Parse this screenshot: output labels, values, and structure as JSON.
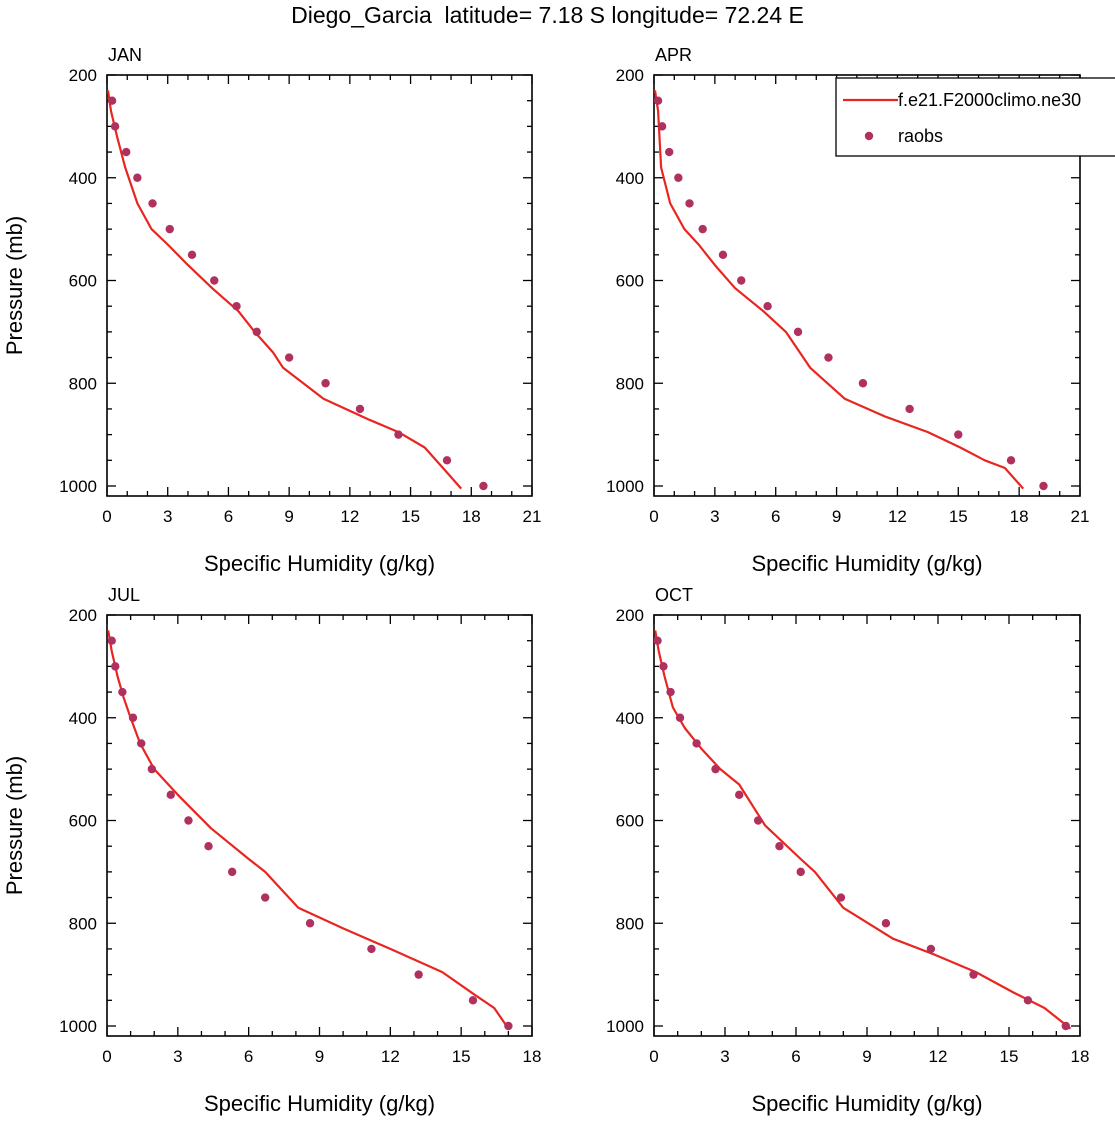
{
  "figure": {
    "title": "Diego_Garcia  latitude= 7.18 S longitude= 72.24 E"
  },
  "legend": {
    "model_label": "f.e21.F2000climo.ne30",
    "obs_label": "raobs",
    "model_color": "#e8261f",
    "obs_color": "#b03060"
  },
  "chart_data": [
    {
      "type": "line",
      "title": "JAN",
      "xlabel": "Specific Humidity (g/kg)",
      "ylabel": "Pressure (mb)",
      "xlim": [
        0,
        21
      ],
      "ylim": [
        200,
        1000
      ],
      "y_inverted": true,
      "x_ticks": [
        0,
        3,
        6,
        9,
        12,
        15,
        18,
        21
      ],
      "y_ticks": [
        200,
        400,
        600,
        800,
        1000
      ],
      "series": [
        {
          "name": "f.e21.F2000climo.ne30",
          "kind": "line",
          "x": [
            0.05,
            0.2,
            0.5,
            0.9,
            1.5,
            2.2,
            3.0,
            4.0,
            5.2,
            6.5,
            7.3,
            8.2,
            8.7,
            10.7,
            12.9,
            14.4,
            15.7,
            16.6,
            17.5
          ],
          "y": [
            230,
            270,
            320,
            380,
            450,
            500,
            530,
            570,
            615,
            660,
            700,
            740,
            770,
            830,
            870,
            895,
            925,
            965,
            1005
          ]
        },
        {
          "name": "raobs",
          "kind": "scatter",
          "x": [
            0.25,
            0.4,
            0.95,
            1.5,
            2.25,
            3.1,
            4.2,
            5.3,
            6.4,
            7.4,
            9.0,
            10.8,
            12.5,
            14.4,
            16.8,
            18.6
          ],
          "y": [
            250,
            300,
            350,
            400,
            450,
            500,
            550,
            600,
            650,
            700,
            750,
            800,
            850,
            900,
            950,
            1000
          ]
        }
      ]
    },
    {
      "type": "line",
      "title": "APR",
      "xlabel": "Specific Humidity (g/kg)",
      "ylabel": "",
      "xlim": [
        0,
        21
      ],
      "ylim": [
        200,
        1000
      ],
      "y_inverted": true,
      "x_ticks": [
        0,
        3,
        6,
        9,
        12,
        15,
        18,
        21
      ],
      "y_ticks": [
        200,
        400,
        600,
        800,
        1000
      ],
      "series": [
        {
          "name": "f.e21.F2000climo.ne30",
          "kind": "line",
          "x": [
            0.05,
            0.2,
            0.35,
            0.8,
            1.5,
            2.2,
            3.0,
            4.0,
            5.4,
            6.5,
            7.7,
            9.4,
            11.4,
            13.5,
            15.1,
            16.3,
            17.3,
            18.2
          ],
          "y": [
            230,
            270,
            380,
            450,
            500,
            530,
            570,
            615,
            660,
            700,
            770,
            830,
            865,
            895,
            925,
            950,
            965,
            1005
          ]
        },
        {
          "name": "raobs",
          "kind": "scatter",
          "x": [
            0.2,
            0.4,
            0.75,
            1.2,
            1.75,
            2.4,
            3.4,
            4.3,
            5.6,
            7.1,
            8.6,
            10.3,
            12.6,
            15.0,
            17.6,
            19.2
          ],
          "y": [
            250,
            300,
            350,
            400,
            450,
            500,
            550,
            600,
            650,
            700,
            750,
            800,
            850,
            900,
            950,
            1000
          ]
        }
      ]
    },
    {
      "type": "line",
      "title": "JUL",
      "xlabel": "Specific Humidity (g/kg)",
      "ylabel": "Pressure (mb)",
      "xlim": [
        0,
        18
      ],
      "ylim": [
        200,
        1000
      ],
      "y_inverted": true,
      "x_ticks": [
        0,
        3,
        6,
        9,
        12,
        15,
        18
      ],
      "y_ticks": [
        200,
        400,
        600,
        800,
        1000
      ],
      "series": [
        {
          "name": "f.e21.F2000climo.ne30",
          "kind": "line",
          "x": [
            0.05,
            0.2,
            0.45,
            0.7,
            1.0,
            1.4,
            2.0,
            3.0,
            4.4,
            6.0,
            6.7,
            8.1,
            10.0,
            12.0,
            14.2,
            15.6,
            16.4,
            17.0
          ],
          "y": [
            230,
            270,
            320,
            360,
            400,
            450,
            500,
            550,
            615,
            675,
            700,
            770,
            810,
            850,
            895,
            940,
            965,
            1005
          ]
        },
        {
          "name": "raobs",
          "kind": "scatter",
          "x": [
            0.2,
            0.35,
            0.65,
            1.1,
            1.45,
            1.9,
            2.7,
            3.45,
            4.3,
            5.3,
            6.7,
            8.6,
            11.2,
            13.2,
            15.5,
            17.0
          ],
          "y": [
            250,
            300,
            350,
            400,
            450,
            500,
            550,
            600,
            650,
            700,
            750,
            800,
            850,
            900,
            950,
            1000
          ]
        }
      ]
    },
    {
      "type": "line",
      "title": "OCT",
      "xlabel": "Specific Humidity (g/kg)",
      "ylabel": "",
      "xlim": [
        0,
        18
      ],
      "ylim": [
        200,
        1000
      ],
      "y_inverted": true,
      "x_ticks": [
        0,
        3,
        6,
        9,
        12,
        15,
        18
      ],
      "y_ticks": [
        200,
        400,
        600,
        800,
        1000
      ],
      "series": [
        {
          "name": "f.e21.F2000climo.ne30",
          "kind": "line",
          "x": [
            0.05,
            0.2,
            0.45,
            0.8,
            1.3,
            2.0,
            2.8,
            3.6,
            4.7,
            6.2,
            6.8,
            8.0,
            10.1,
            11.8,
            13.6,
            15.2,
            16.5,
            17.6
          ],
          "y": [
            230,
            270,
            320,
            380,
            420,
            460,
            500,
            530,
            610,
            675,
            700,
            770,
            830,
            860,
            895,
            935,
            965,
            1005
          ]
        },
        {
          "name": "raobs",
          "kind": "scatter",
          "x": [
            0.15,
            0.4,
            0.7,
            1.1,
            1.8,
            2.6,
            3.6,
            4.4,
            5.3,
            6.2,
            7.9,
            9.8,
            11.7,
            13.5,
            15.8,
            17.4
          ],
          "y": [
            250,
            300,
            350,
            400,
            450,
            500,
            550,
            600,
            650,
            700,
            750,
            800,
            850,
            900,
            950,
            1000
          ]
        }
      ]
    }
  ]
}
